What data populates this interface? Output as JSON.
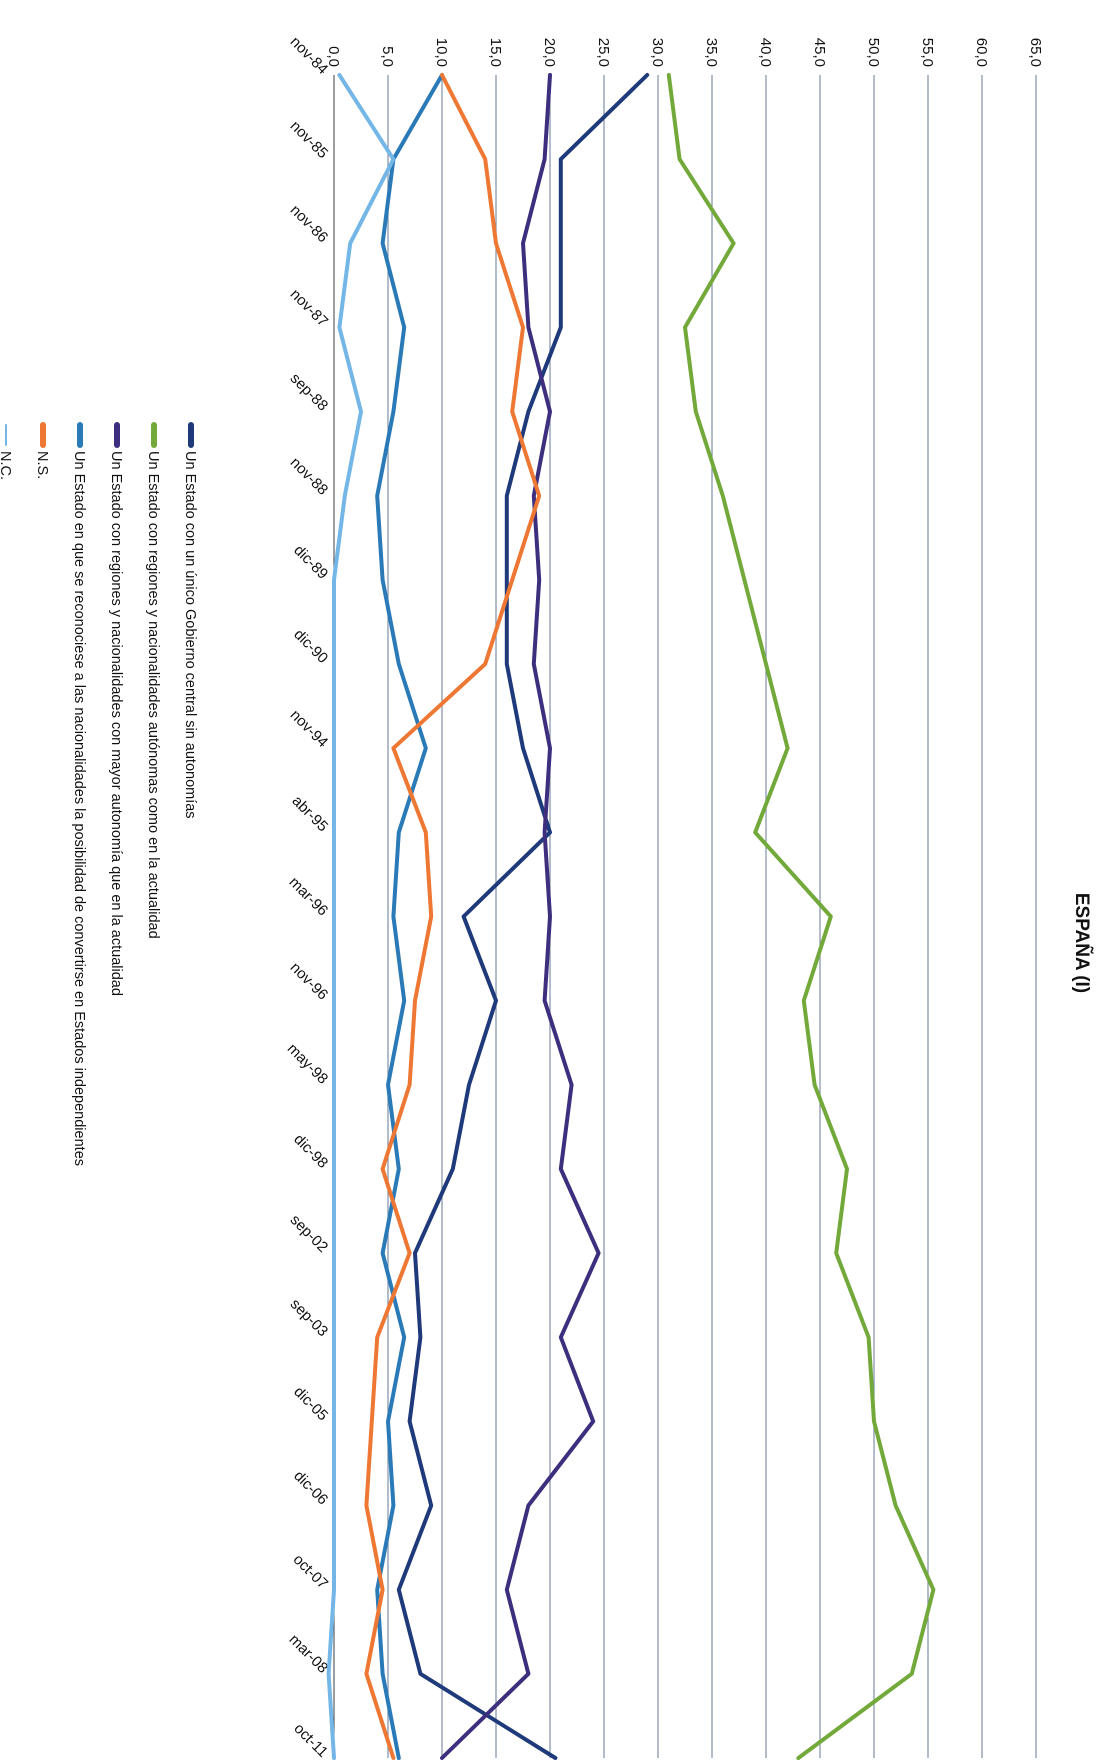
{
  "chart_data": {
    "type": "line",
    "title": "ESPAÑA (I)",
    "ylim": [
      0,
      65
    ],
    "yticks": [
      "0,0",
      "5,0",
      "10,0",
      "15,0",
      "20,0",
      "25,0",
      "30,0",
      "35,0",
      "40,0",
      "45,0",
      "50,0",
      "55,0",
      "60,0",
      "65,0"
    ],
    "ytick_values": [
      0,
      5,
      10,
      15,
      20,
      25,
      30,
      35,
      40,
      45,
      50,
      55,
      60,
      65
    ],
    "grid": true,
    "legend_position": "bottom",
    "categories": [
      "nov-84",
      "nov-85",
      "nov-86",
      "nov-87",
      "sep-88",
      "nov-88",
      "dic-89",
      "dic-90",
      "nov-94",
      "abr-95",
      "mar-96",
      "nov-96",
      "may-98",
      "dic-98",
      "sep-02",
      "sep-03",
      "dic-05",
      "dic-06",
      "oct-07",
      "mar-08",
      "oct-11"
    ],
    "series": [
      {
        "name": "Un Estado con un único Gobierno central sin autonomías",
        "color": "#1f3a7a",
        "values": [
          29.0,
          21.0,
          21.0,
          21.0,
          18.0,
          16.0,
          16.0,
          16.0,
          17.5,
          20.0,
          12.0,
          15.0,
          12.5,
          11.0,
          7.5,
          8.0,
          7.0,
          9.0,
          6.0,
          8.0,
          20.5
        ]
      },
      {
        "name": "Un Estado con regiones y nacionalidades autónomas como en la actualidad",
        "color": "#72a93a",
        "values": [
          31.0,
          32.0,
          37.0,
          32.5,
          33.5,
          36.0,
          38.0,
          40.0,
          42.0,
          39.0,
          46.0,
          43.5,
          44.5,
          47.5,
          46.5,
          49.5,
          50.0,
          52.0,
          55.5,
          53.5,
          43.0
        ]
      },
      {
        "name": "Un Estado con regiones y nacionalidades con mayor autonomía que en la actualidad",
        "color": "#3e2f7e",
        "values": [
          20.0,
          19.5,
          17.5,
          18.0,
          20.0,
          18.5,
          19.0,
          18.5,
          20.0,
          19.5,
          20.0,
          19.5,
          22.0,
          21.0,
          24.5,
          21.0,
          24.0,
          18.0,
          16.0,
          18.0,
          10.0
        ]
      },
      {
        "name": "Un Estado en que se reconociese a las nacionalidades la posibilidad de convertirse en Estados independientes",
        "color": "#2a7ab8",
        "values": [
          10.0,
          5.5,
          4.5,
          6.5,
          5.5,
          4.0,
          4.5,
          6.0,
          8.5,
          6.0,
          5.5,
          6.5,
          5.0,
          6.0,
          4.5,
          6.5,
          5.0,
          5.5,
          4.0,
          4.5,
          6.0
        ]
      },
      {
        "name": "N.S.",
        "color": "#ee7733",
        "values": [
          10.0,
          14.0,
          15.0,
          17.5,
          16.5,
          19.0,
          16.5,
          14.0,
          5.5,
          8.5,
          9.0,
          7.5,
          7.0,
          4.5,
          7.0,
          4.0,
          3.5,
          3.0,
          4.5,
          3.0,
          5.5
        ]
      },
      {
        "name": "N.C.",
        "color": "#74b6e6",
        "values": [
          0.5,
          5.5,
          1.5,
          0.5,
          2.5,
          1.0,
          0.0,
          0.0,
          0.0,
          0.0,
          0.0,
          0.0,
          0.0,
          0.0,
          0.0,
          0.0,
          0.0,
          0.0,
          0.0,
          -0.5,
          0.0
        ]
      }
    ]
  }
}
